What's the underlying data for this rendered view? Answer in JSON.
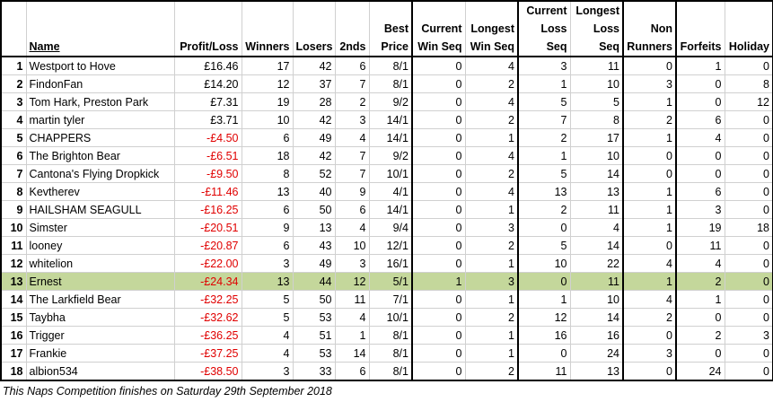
{
  "table": {
    "header": [
      "Name",
      "Profit/Loss",
      "Winners",
      "Losers",
      "2nds",
      "Best\nPrice",
      "Current\nWin Seq",
      "Longest\nWin Seq",
      "Current\nLoss Seq",
      "Longest\nLoss Seq",
      "Non\nRunners",
      "Forfeits",
      "Holiday"
    ],
    "rows": [
      [
        1,
        "Westport to Hove",
        "£16.46",
        17,
        42,
        6,
        "8/1",
        0,
        4,
        3,
        11,
        0,
        1,
        0
      ],
      [
        2,
        "FindonFan",
        "£14.20",
        12,
        37,
        7,
        "8/1",
        0,
        2,
        1,
        10,
        3,
        0,
        8
      ],
      [
        3,
        "Tom Hark, Preston Park",
        "£7.31",
        19,
        28,
        2,
        "9/2",
        0,
        4,
        5,
        5,
        1,
        0,
        12
      ],
      [
        4,
        "martin tyler",
        "£3.71",
        10,
        42,
        3,
        "14/1",
        0,
        2,
        7,
        8,
        2,
        6,
        0
      ],
      [
        5,
        "CHAPPERS",
        "-£4.50",
        6,
        49,
        4,
        "14/1",
        0,
        1,
        2,
        17,
        1,
        4,
        0
      ],
      [
        6,
        "The Brighton Bear",
        "-£6.51",
        18,
        42,
        7,
        "9/2",
        0,
        4,
        1,
        10,
        0,
        0,
        0
      ],
      [
        7,
        "Cantona's Flying Dropkick",
        "-£9.50",
        8,
        52,
        7,
        "10/1",
        0,
        2,
        5,
        14,
        0,
        0,
        0
      ],
      [
        8,
        "Kevtherev",
        "-£11.46",
        13,
        40,
        9,
        "4/1",
        0,
        4,
        13,
        13,
        1,
        6,
        0
      ],
      [
        9,
        "HAILSHAM SEAGULL",
        "-£16.25",
        6,
        50,
        6,
        "14/1",
        0,
        1,
        2,
        11,
        1,
        3,
        0
      ],
      [
        10,
        "Simster",
        "-£20.51",
        9,
        13,
        4,
        "9/4",
        0,
        3,
        0,
        4,
        1,
        19,
        18
      ],
      [
        11,
        "looney",
        "-£20.87",
        6,
        43,
        10,
        "12/1",
        0,
        2,
        5,
        14,
        0,
        11,
        0
      ],
      [
        12,
        "whitelion",
        "-£22.00",
        3,
        49,
        3,
        "16/1",
        0,
        1,
        10,
        22,
        4,
        4,
        0
      ],
      [
        13,
        "Ernest",
        "-£24.34",
        13,
        44,
        12,
        "5/1",
        1,
        3,
        0,
        11,
        1,
        2,
        0
      ],
      [
        14,
        "The Larkfield Bear",
        "-£32.25",
        5,
        50,
        11,
        "7/1",
        0,
        1,
        1,
        10,
        4,
        1,
        0
      ],
      [
        15,
        "Taybha",
        "-£32.62",
        5,
        53,
        4,
        "10/1",
        0,
        2,
        12,
        14,
        2,
        0,
        0
      ],
      [
        16,
        "Trigger",
        "-£36.25",
        4,
        51,
        1,
        "8/1",
        0,
        1,
        16,
        16,
        0,
        2,
        3
      ],
      [
        17,
        "Frankie",
        "-£37.25",
        4,
        53,
        14,
        "8/1",
        0,
        1,
        0,
        24,
        3,
        0,
        0
      ],
      [
        18,
        "albion534",
        "-£38.50",
        3,
        33,
        6,
        "8/1",
        0,
        2,
        11,
        13,
        0,
        24,
        0
      ]
    ],
    "highlighted_row": 12,
    "highlight_color": "#c4d79b",
    "negative_color": "#e00000"
  },
  "footer": "This Naps Competition finishes on Saturday 29th September 2018"
}
